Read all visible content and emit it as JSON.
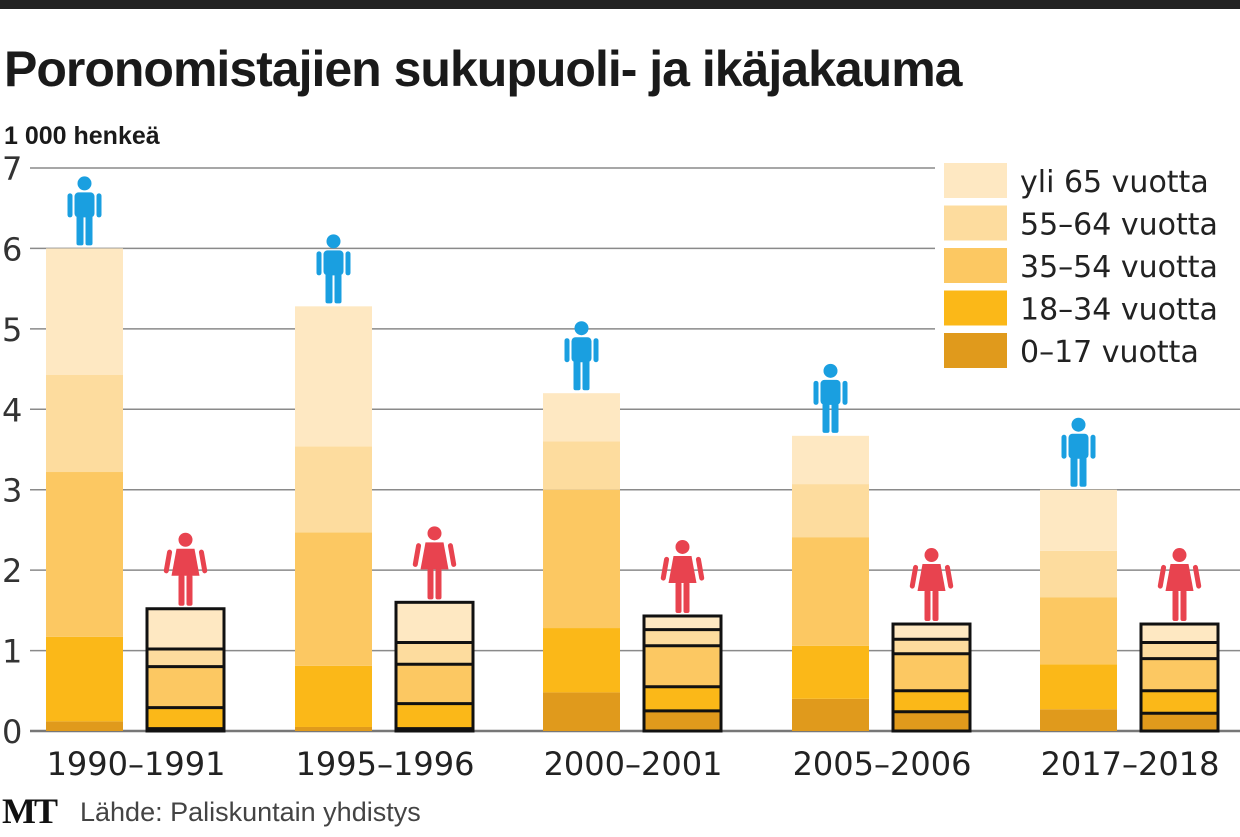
{
  "chart_data": {
    "type": "bar",
    "stacked": true,
    "title": "Poronomistajien sukupuoli- ja ikäjakauma",
    "ylabel": "1 000 henkeä",
    "xlabel": "",
    "ylim": [
      0,
      7
    ],
    "yticks": [
      "0",
      "1",
      "2",
      "3",
      "4",
      "5",
      "6",
      "7"
    ],
    "grid": true,
    "legend_position": "top-right",
    "categories": [
      "1990–1991",
      "1995–1996",
      "2000–2001",
      "2005–2006",
      "2017–2018"
    ],
    "groups": [
      "miehet",
      "naiset"
    ],
    "age_groups": [
      {
        "name": "0–17 vuotta",
        "color": "#e09a1c"
      },
      {
        "name": "18–34 vuotta",
        "color": "#fbb818"
      },
      {
        "name": "35–54 vuotta",
        "color": "#fcc862"
      },
      {
        "name": "55–64 vuotta",
        "color": "#fddc9e"
      },
      {
        "name": "yli 65 vuotta",
        "color": "#fee8c2"
      }
    ],
    "series": [
      {
        "name": "miehet",
        "icon": "man-icon",
        "color": "#1a9fe0",
        "values": [
          [
            0.12,
            1.05,
            2.05,
            1.21,
            1.57
          ],
          [
            0.05,
            0.76,
            1.66,
            1.07,
            1.74
          ],
          [
            0.48,
            0.8,
            1.72,
            0.6,
            0.6
          ],
          [
            0.4,
            0.66,
            1.35,
            0.66,
            0.6
          ],
          [
            0.27,
            0.56,
            0.83,
            0.58,
            0.76
          ]
        ]
      },
      {
        "name": "naiset",
        "icon": "woman-icon",
        "color": "#e8434f",
        "values": [
          [
            0.03,
            0.26,
            0.51,
            0.22,
            0.5
          ],
          [
            0.03,
            0.31,
            0.49,
            0.27,
            0.5
          ],
          [
            0.25,
            0.3,
            0.51,
            0.2,
            0.17
          ],
          [
            0.24,
            0.26,
            0.46,
            0.18,
            0.19
          ],
          [
            0.22,
            0.28,
            0.4,
            0.2,
            0.23
          ]
        ]
      }
    ]
  },
  "footer": {
    "logo": "MT",
    "source": "Lähde: Paliskuntain yhdistys"
  }
}
